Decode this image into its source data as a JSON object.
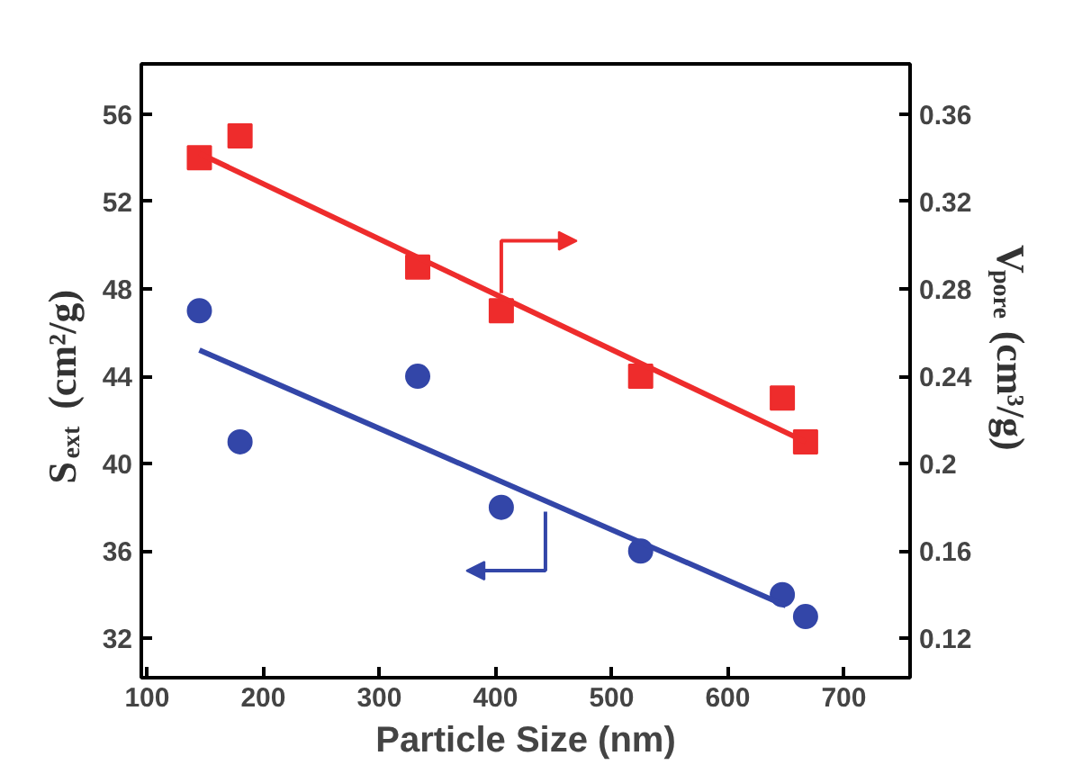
{
  "chart_data": {
    "type": "scatter",
    "xlabel": "Particle Size (nm)",
    "ylabel": "S$_{ext}$ (cm²/g)",
    "y2label": "V$_{pore}$ (cm³/g)",
    "xlim": [
      95,
      757
    ],
    "xticks": [
      100,
      200,
      300,
      400,
      500,
      600,
      700
    ],
    "ylim": [
      30.2,
      58.3
    ],
    "yticks": [
      32,
      36,
      40,
      44,
      48,
      52,
      56
    ],
    "y2lim": [
      0.102,
      0.383
    ],
    "y2ticks": [
      0.12,
      0.16,
      0.2,
      0.24,
      0.28,
      0.32,
      0.36
    ],
    "grid": false,
    "series": [
      {
        "marker": "circle",
        "color": "#3346a8",
        "x": [
          145,
          180,
          333,
          405,
          525,
          647,
          667
        ],
        "values": [
          47,
          41,
          44,
          38,
          36,
          34,
          33
        ]
      },
      {
        "type": "line",
        "color": "#3346a8",
        "x": [
          145,
          650
        ],
        "values": [
          45.2,
          33.5
        ]
      },
      {
        "marker": "square",
        "axis": "y2",
        "color": "#ee2c2c",
        "x": [
          145,
          180,
          333,
          405,
          525,
          647,
          667
        ],
        "values": [
          0.34,
          0.35,
          0.29,
          0.27,
          0.24,
          0.23,
          0.21
        ]
      },
      {
        "type": "line",
        "axis": "y2",
        "color": "#ee2c2c",
        "x": [
          145,
          667
        ],
        "values": [
          0.342,
          0.21
        ]
      }
    ]
  }
}
